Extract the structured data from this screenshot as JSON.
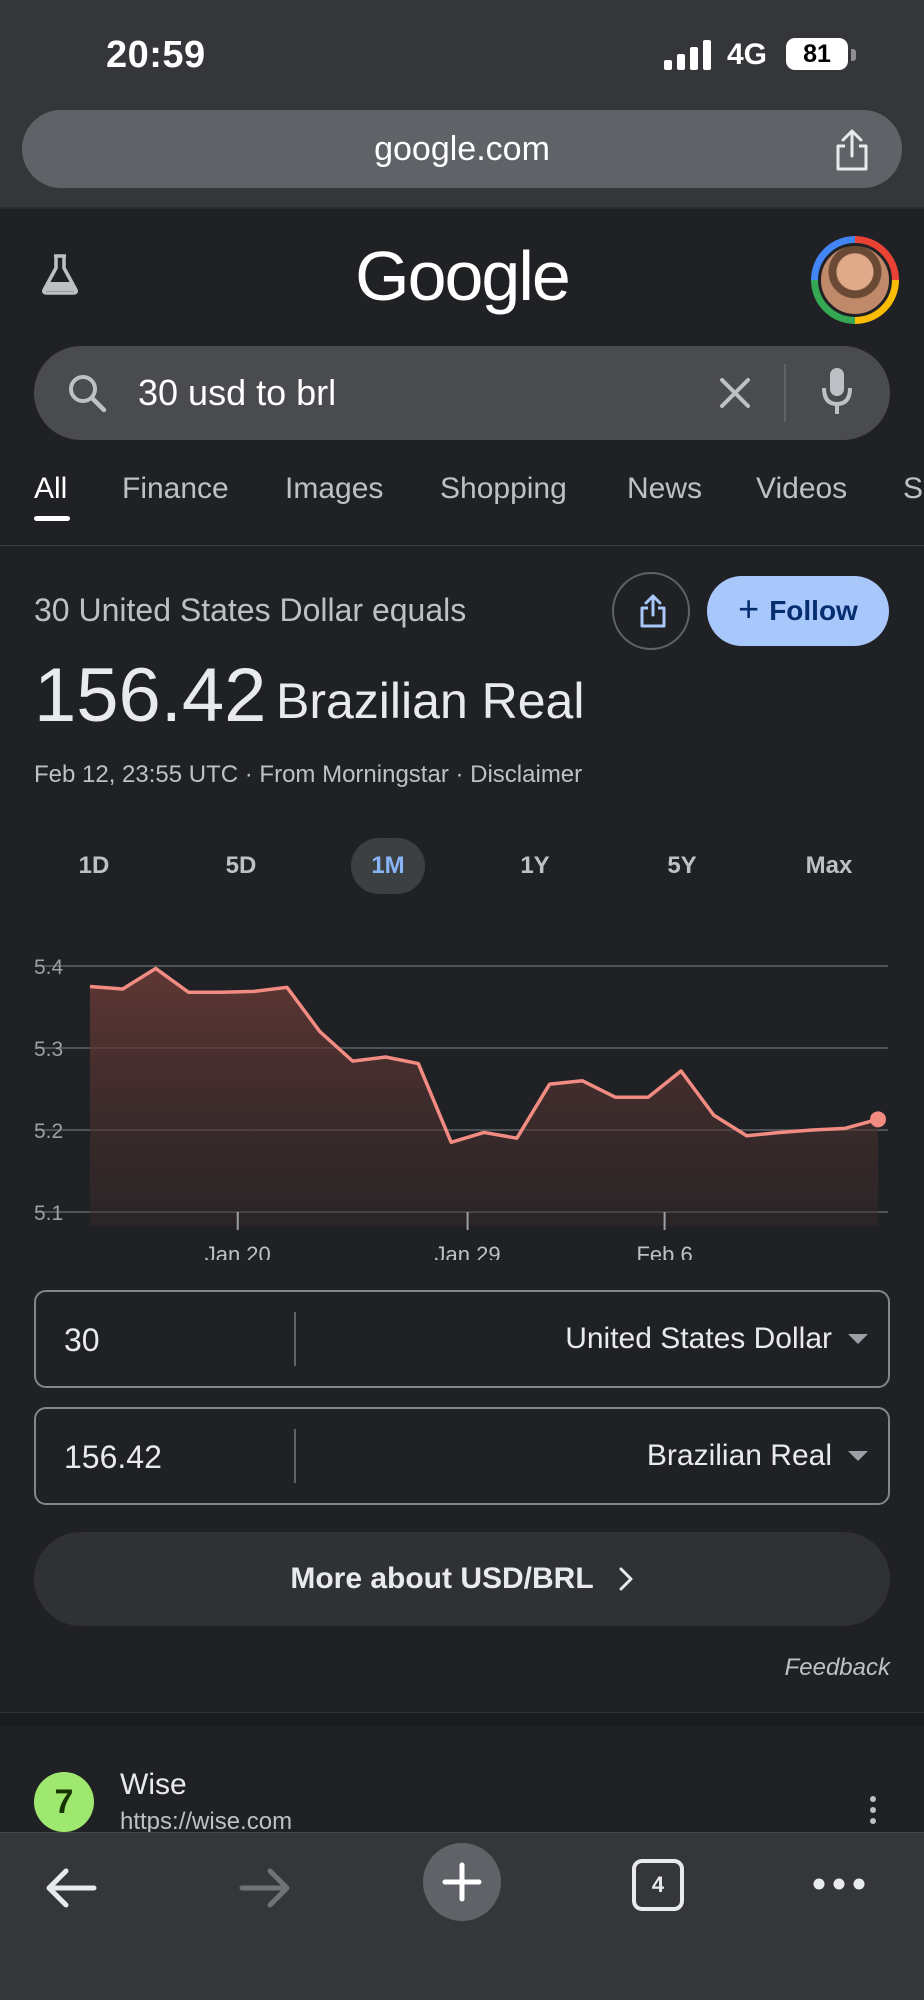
{
  "status": {
    "time": "20:59",
    "network": "4G",
    "battery": "81"
  },
  "browser": {
    "url": "google.com",
    "open_tabs": "4"
  },
  "google": {
    "logo": "Google"
  },
  "search": {
    "query": "30 usd to brl"
  },
  "tabs": [
    "All",
    "Finance",
    "Images",
    "Shopping",
    "News",
    "Videos",
    "S"
  ],
  "result": {
    "equals_label": "30 United States Dollar equals",
    "follow_label": "Follow",
    "amount": "156.42",
    "amount_unit": "Brazilian Real",
    "meta": "Feb 12, 23:55 UTC · From Morningstar · Disclaimer"
  },
  "ranges": [
    "1D",
    "5D",
    "1M",
    "1Y",
    "5Y",
    "Max"
  ],
  "active_range": "1M",
  "chart_data": {
    "type": "area",
    "title": "",
    "xlabel": "",
    "ylabel": "",
    "ylim": [
      5.1,
      5.4
    ],
    "yticks": [
      "5.4",
      "5.3",
      "5.2",
      "5.1"
    ],
    "xtick_labels": [
      "Jan 20",
      "Jan 29",
      "Feb 6"
    ],
    "grid": true,
    "color": "#f28b82",
    "values": [
      5.375,
      5.372,
      5.397,
      5.368,
      5.368,
      5.369,
      5.374,
      5.32,
      5.284,
      5.289,
      5.281,
      5.185,
      5.197,
      5.19,
      5.256,
      5.26,
      5.24,
      5.24,
      5.272,
      5.218,
      5.193,
      5.197,
      5.2,
      5.202,
      5.213
    ]
  },
  "converter": {
    "from_value": "30",
    "from_currency": "United States Dollar",
    "to_value": "156.42",
    "to_currency": "Brazilian Real"
  },
  "more_button": "More about USD/BRL",
  "feedback": "Feedback",
  "next_result": {
    "name": "Wise",
    "url": "https://wise.com",
    "logo_glyph": "7"
  },
  "colors": {
    "accent": "#a8c7fa",
    "line": "#f28b82",
    "active_range": "#8ab4f8"
  }
}
